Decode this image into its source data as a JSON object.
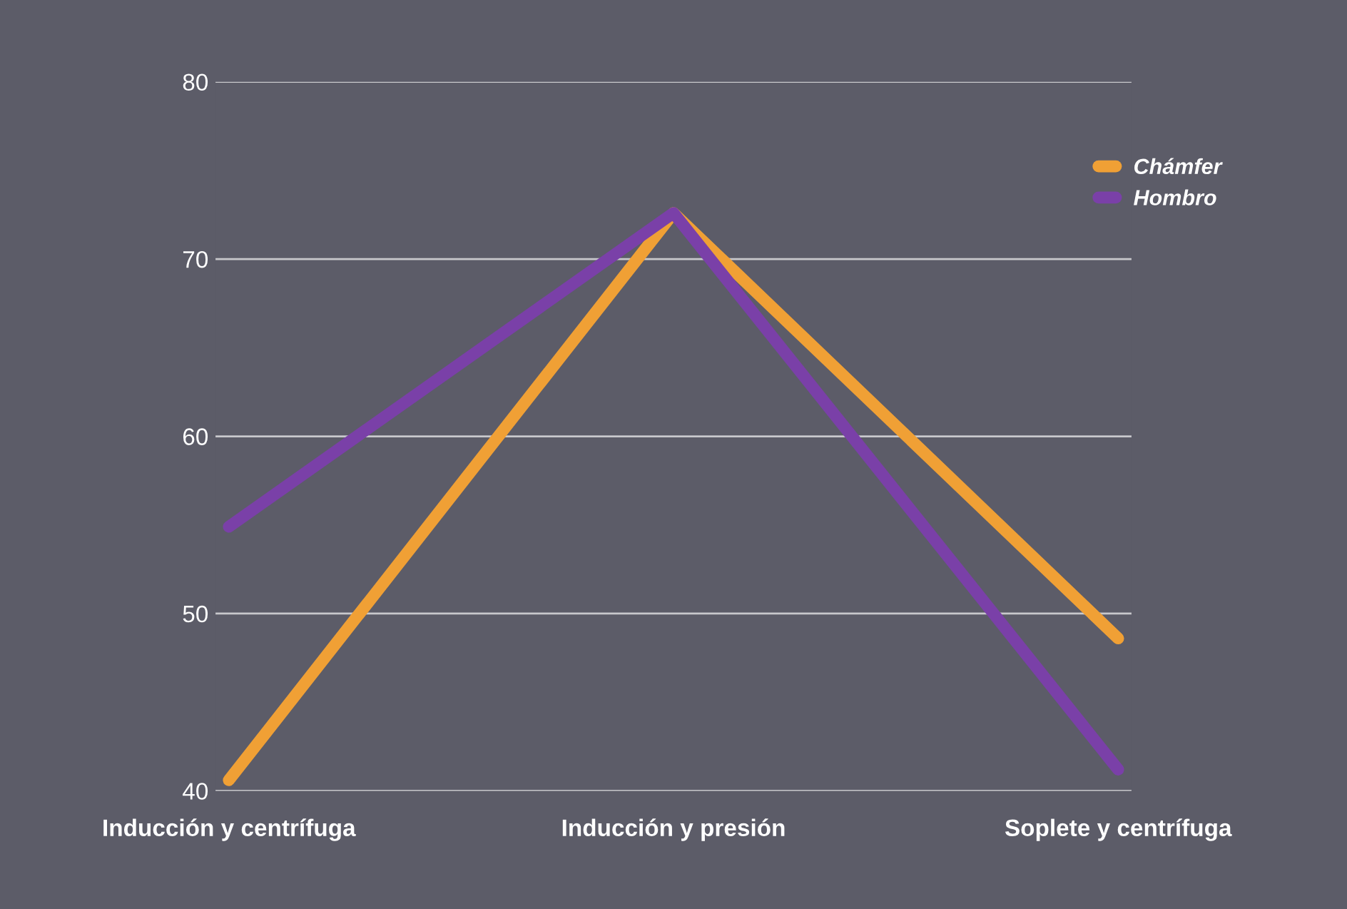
{
  "chart_data": {
    "type": "line",
    "categories": [
      "Inducción y centrífuga",
      "Inducción y presión",
      "Soplete y centrífuga"
    ],
    "series": [
      {
        "name": "Chámfer",
        "color": "#f0a035",
        "values": [
          40.6,
          72.6,
          48.6
        ]
      },
      {
        "name": "Hombro",
        "color": "#7a40a8",
        "values": [
          54.9,
          72.6,
          41.2
        ]
      }
    ],
    "ylim": [
      40,
      80
    ],
    "yticks": [
      40,
      50,
      60,
      70,
      80
    ],
    "grid": "y",
    "legend": "top right",
    "marker": "none",
    "line_style": "solid"
  }
}
